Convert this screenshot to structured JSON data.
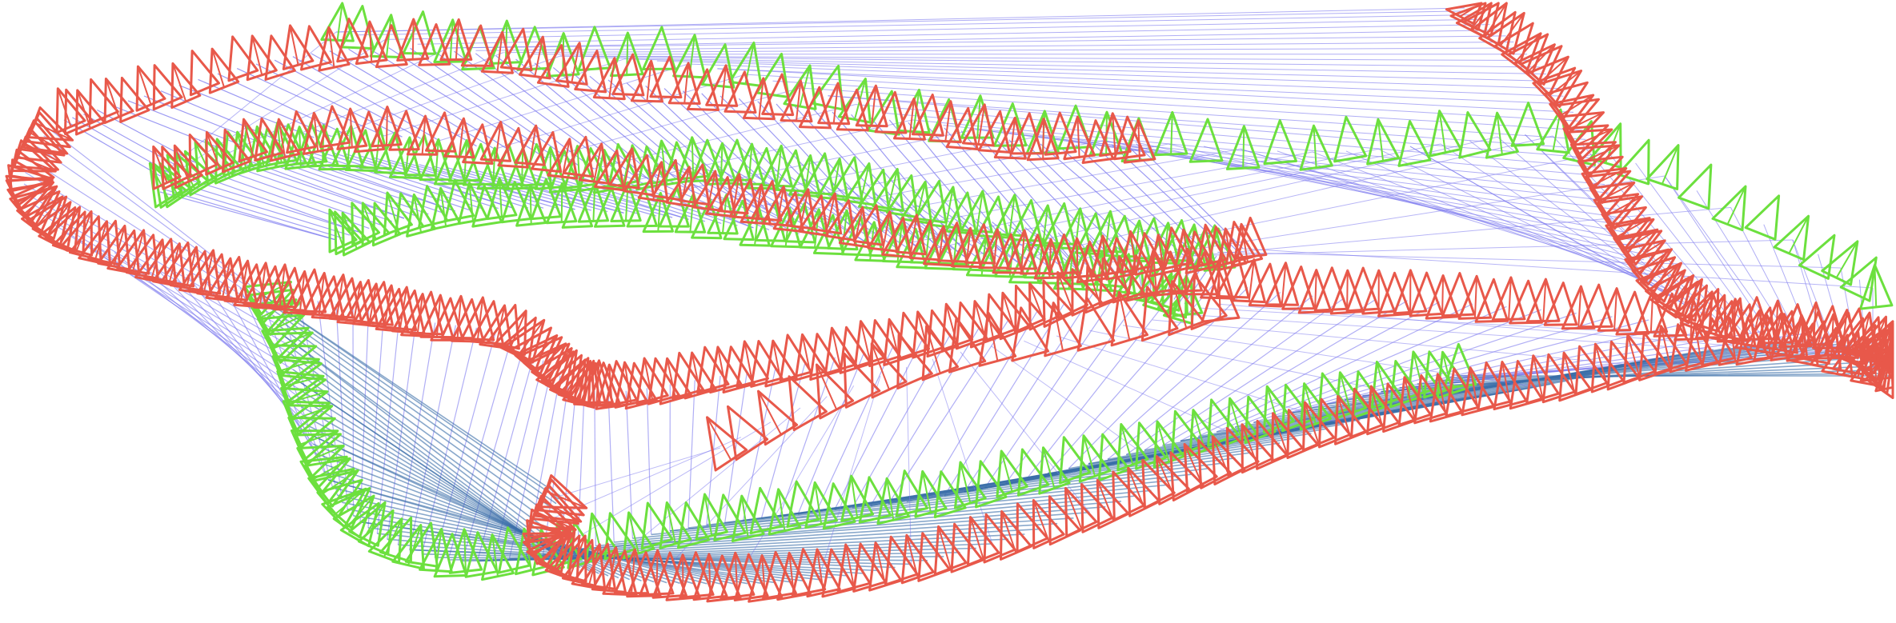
{
  "diagram": {
    "kind": "camera-trajectory-pose-graph",
    "background": "#ffffff",
    "colors": {
      "camera_a": "#e8584a",
      "camera_b": "#6ce03e",
      "edge": "#7b78ef",
      "edge_dark": "#3a6ea8"
    },
    "groups": [
      {
        "name": "camera-frustums-red",
        "color_key": "camera_a"
      },
      {
        "name": "camera-frustums-green",
        "color_key": "camera_b"
      },
      {
        "name": "pose-graph-edges",
        "color_key": "edge"
      }
    ],
    "text": []
  }
}
